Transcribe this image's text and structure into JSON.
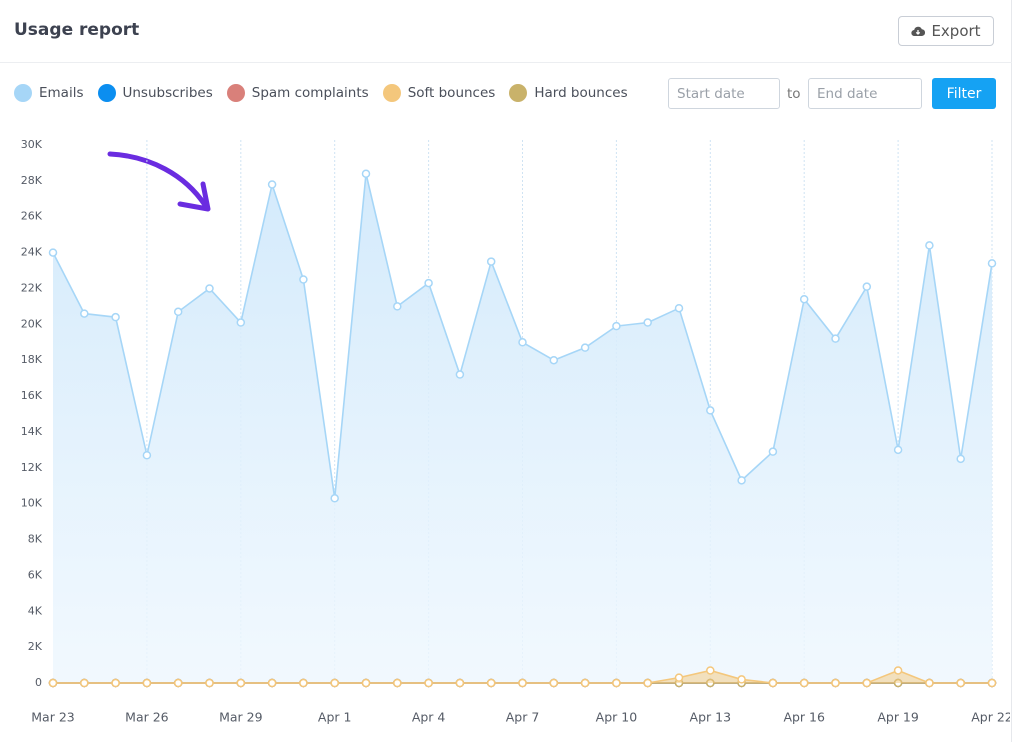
{
  "header": {
    "title": "Usage report",
    "export": "Export"
  },
  "filters": {
    "start_placeholder": "Start date",
    "to": "to",
    "end_placeholder": "End date",
    "button": "Filter"
  },
  "chart_data": {
    "type": "line",
    "categories": [
      "Mar 23",
      null,
      null,
      "Mar 26",
      null,
      null,
      "Mar 29",
      null,
      null,
      "Apr 1",
      null,
      null,
      "Apr 4",
      null,
      null,
      "Apr 7",
      null,
      null,
      "Apr 10",
      null,
      null,
      "Apr 13",
      null,
      null,
      "Apr 16",
      null,
      null,
      "Apr 19",
      null,
      null,
      "Apr 22"
    ],
    "series": [
      {
        "name": "Emails",
        "color": "#a6d6f7",
        "area": true,
        "values": [
          24000,
          20600,
          20400,
          12700,
          20700,
          22000,
          20100,
          27800,
          22500,
          10300,
          28400,
          21000,
          22300,
          17200,
          23500,
          19000,
          18000,
          18700,
          19900,
          20100,
          20900,
          15200,
          11300,
          12900,
          21400,
          19200,
          22100,
          13000,
          24400,
          12500,
          23400
        ]
      },
      {
        "name": "Unsubscribes",
        "color": "#0b8ef0",
        "values": [
          0,
          0,
          0,
          0,
          0,
          0,
          0,
          0,
          0,
          0,
          0,
          0,
          0,
          0,
          0,
          0,
          0,
          0,
          0,
          0,
          0,
          0,
          0,
          0,
          0,
          0,
          0,
          0,
          0,
          0,
          0
        ]
      },
      {
        "name": "Spam complaints",
        "color": "#d9807a",
        "values": [
          0,
          0,
          0,
          0,
          0,
          0,
          0,
          0,
          0,
          0,
          0,
          0,
          0,
          0,
          0,
          0,
          0,
          0,
          0,
          0,
          0,
          0,
          0,
          0,
          0,
          0,
          0,
          0,
          0,
          0,
          0
        ]
      },
      {
        "name": "Hard bounces",
        "color": "#c9b26a",
        "values": [
          0,
          0,
          0,
          0,
          0,
          0,
          0,
          0,
          0,
          0,
          0,
          0,
          0,
          0,
          0,
          0,
          0,
          0,
          0,
          0,
          0,
          0,
          0,
          0,
          0,
          0,
          0,
          0,
          0,
          0,
          0
        ]
      },
      {
        "name": "Soft bounces",
        "color": "#f4c77c",
        "area": true,
        "values": [
          0,
          0,
          0,
          0,
          0,
          0,
          0,
          0,
          0,
          0,
          0,
          0,
          0,
          0,
          0,
          0,
          0,
          0,
          0,
          0,
          300,
          700,
          200,
          0,
          0,
          0,
          0,
          700,
          0,
          0,
          0
        ]
      }
    ],
    "legend_order": [
      0,
      1,
      2,
      4,
      3
    ],
    "ylim": [
      0,
      30000
    ],
    "yticks": [
      0,
      {
        "value": 2000,
        "label": "2K"
      },
      {
        "value": 4000,
        "label": "4K"
      },
      {
        "value": 6000,
        "label": "6K"
      },
      {
        "value": 8000,
        "label": "8K"
      },
      {
        "value": 10000,
        "label": "10K"
      },
      {
        "value": 12000,
        "label": "12K"
      },
      {
        "value": 14000,
        "label": "14K"
      },
      {
        "value": 16000,
        "label": "16K"
      },
      {
        "value": 18000,
        "label": "18K"
      },
      {
        "value": 20000,
        "label": "20K"
      },
      {
        "value": 22000,
        "label": "22K"
      },
      {
        "value": 24000,
        "label": "24K"
      },
      {
        "value": 26000,
        "label": "26K"
      },
      {
        "value": 28000,
        "label": "28K"
      },
      {
        "value": 30000,
        "label": "30K"
      }
    ],
    "grid": "x",
    "markers": true
  }
}
